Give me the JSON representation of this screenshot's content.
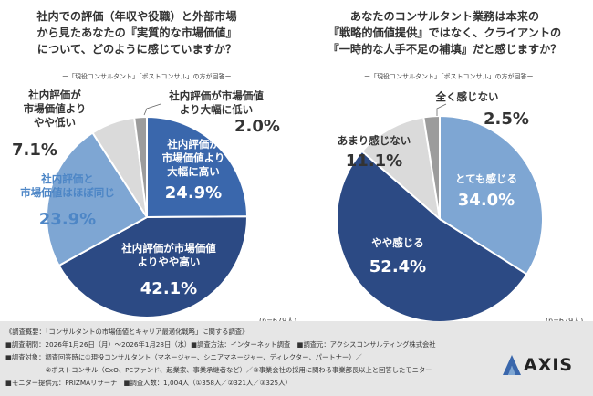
{
  "left": {
    "title_lines": [
      "社内での評価（年収や役職）と外部市場",
      "から見たあなたの『実質的な市場価値』",
      "について、どのように感じていますか？"
    ],
    "subnote": "ー「現役コンサルタント」「ポストコンサル」の方が回答ー",
    "n": "(n=679人)"
  },
  "right": {
    "title_lines": [
      "あなたのコンサルタント業務は本来の",
      "『戦略的価値提供』ではなく、クライアントの",
      "『一時的な人手不足の補填』だと感じますか？"
    ],
    "subnote": "ー「現役コンサルタント」「ポストコンサル」の方が回答ー",
    "n": "(n=679人)"
  },
  "chart_data": [
    {
      "type": "pie",
      "title": "社内での評価（年収や役職）と外部市場から見たあなたの『実質的な市場価値』について、どのように感じていますか？",
      "slices": [
        {
          "label": "社内評価が市場価値より大幅に高い",
          "label_lines": [
            "社内評価が",
            "市場価値より",
            "大幅に高い"
          ],
          "value": 24.9,
          "pct": "24.9%",
          "color": "#3a67ac",
          "text_color": "#ffffff"
        },
        {
          "label": "社内評価が市場価値よりやや高い",
          "label_lines": [
            "社内評価が市場価値",
            "よりやや高い"
          ],
          "value": 42.1,
          "pct": "42.1%",
          "color": "#2c4a84",
          "text_color": "#ffffff"
        },
        {
          "label": "社内評価と市場価値はほぼ同じ",
          "label_lines": [
            "社内評価と",
            "市場価値はほぼ同じ"
          ],
          "value": 23.9,
          "pct": "23.9%",
          "color": "#7ea6d3",
          "text_color": "#ffffff"
        },
        {
          "label": "社内評価が市場価値よりやや低い",
          "label_lines": [
            "社内評価が",
            "市場価値より",
            "やや低い"
          ],
          "value": 7.1,
          "pct": "7.1%",
          "color": "#dadada",
          "text_color": "#333333"
        },
        {
          "label": "社内評価が市場価値より大幅に低い",
          "label_lines": [
            "社内評価が市場価値",
            "より大幅に低い"
          ],
          "value": 2.0,
          "pct": "2.0%",
          "color": "#9c9c9c",
          "text_color": "#333333"
        }
      ]
    },
    {
      "type": "pie",
      "title": "あなたのコンサルタント業務は本来の『戦略的価値提供』ではなく、クライアントの『一時的な人手不足の補填』だと感じますか？",
      "slices": [
        {
          "label": "とても感じる",
          "label_lines": [
            "とても感じる"
          ],
          "value": 34.0,
          "pct": "34.0%",
          "color": "#7ea6d3",
          "text_color": "#ffffff"
        },
        {
          "label": "やや感じる",
          "label_lines": [
            "やや感じる"
          ],
          "value": 52.4,
          "pct": "52.4%",
          "color": "#2c4a84",
          "text_color": "#ffffff"
        },
        {
          "label": "あまり感じない",
          "label_lines": [
            "あまり感じない"
          ],
          "value": 11.1,
          "pct": "11.1%",
          "color": "#dadada",
          "text_color": "#333333"
        },
        {
          "label": "全く感じない",
          "label_lines": [
            "全く感じない"
          ],
          "value": 2.5,
          "pct": "2.5%",
          "color": "#9c9c9c",
          "text_color": "#333333"
        }
      ]
    }
  ],
  "footer": {
    "lines": [
      "《調査概要：「コンサルタントの市場価値とキャリア最適化戦略」に関する調査》",
      "■調査期間：2026年1月26日（月）〜2026年1月28日（水）■調査方法：インターネット調査　■調査元：アクシスコンサルティング株式会社",
      "■調査対象：調査回答時に①現役コンサルタント（マネージャー、シニアマネージャー、ディレクター、パートナー）／",
      "　　　　　　②ポストコンサル（CxO、PEファンド、起業家、事業承継者など）／③事業会社の採用に関わる事業部長以上と回答したモニター",
      "■モニター提供元：PRIZMAリサーチ　■調査人数：1,004人（①358人／②321人／③325人）"
    ]
  },
  "logo": {
    "text": "AXIS",
    "color": "#2c4a84"
  }
}
